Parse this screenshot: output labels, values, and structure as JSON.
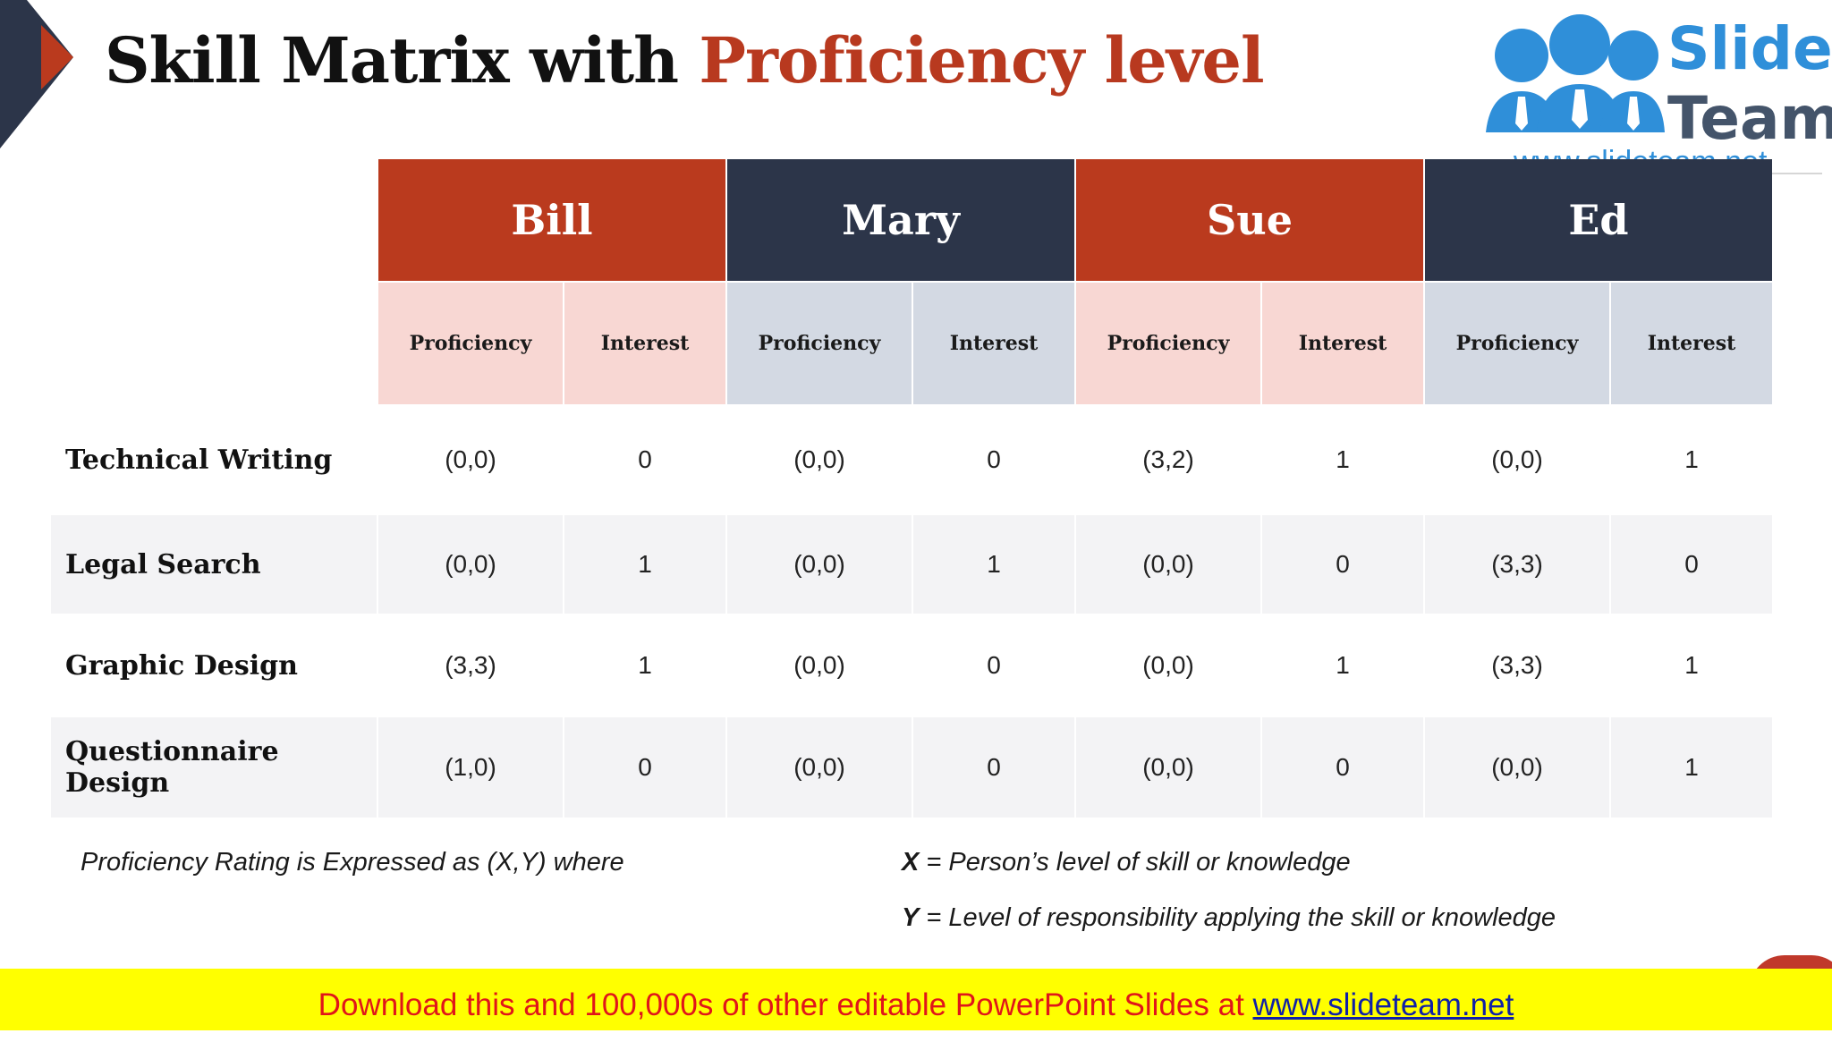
{
  "title": {
    "part1": "Skill Matrix with",
    "part2": "Proficiency level"
  },
  "logo": {
    "word1": "Slide",
    "word2": "Team",
    "url": "www.slideteam.net"
  },
  "people": [
    {
      "name": "Bill",
      "color": "#ba3a1e"
    },
    {
      "name": "Mary",
      "color": "#2c3549"
    },
    {
      "name": "Sue",
      "color": "#ba3a1e"
    },
    {
      "name": "Ed",
      "color": "#2c3549"
    }
  ],
  "subheaders": {
    "proficiency": "Proficiency",
    "interest": "Interest"
  },
  "rows": [
    {
      "skill": "Technical Writing",
      "values": [
        "(0,0)",
        "0",
        "(0,0)",
        "0",
        "(3,2)",
        "1",
        "(0,0)",
        "1"
      ]
    },
    {
      "skill": "Legal Search",
      "values": [
        "(0,0)",
        "1",
        "(0,0)",
        "1",
        "(0,0)",
        "0",
        "(3,3)",
        "0"
      ]
    },
    {
      "skill": "Graphic Design",
      "values": [
        "(3,3)",
        "1",
        "(0,0)",
        "0",
        "(0,0)",
        "1",
        "(3,3)",
        "1"
      ]
    },
    {
      "skill": "Questionnaire Design",
      "values": [
        "(1,0)",
        "0",
        "(0,0)",
        "0",
        "(0,0)",
        "0",
        "(0,0)",
        "1"
      ]
    }
  ],
  "notes": {
    "rating": "Proficiency Rating is Expressed as (X,Y) where",
    "x_key": "X",
    "x_text": " = Person’s level of skill or knowledge",
    "y_key": "Y",
    "y_text": " = Level of responsibility applying the skill or knowledge"
  },
  "footer": {
    "text": "Download this and 100,000s of other editable PowerPoint Slides at ",
    "link": "www.slideteam.net"
  },
  "colors": {
    "accent_red": "#b8391f",
    "navy": "#2c3549",
    "pink_sub": "#f8d7d3",
    "blue_sub": "#d3d9e3",
    "footer_bg": "#ffff00"
  }
}
